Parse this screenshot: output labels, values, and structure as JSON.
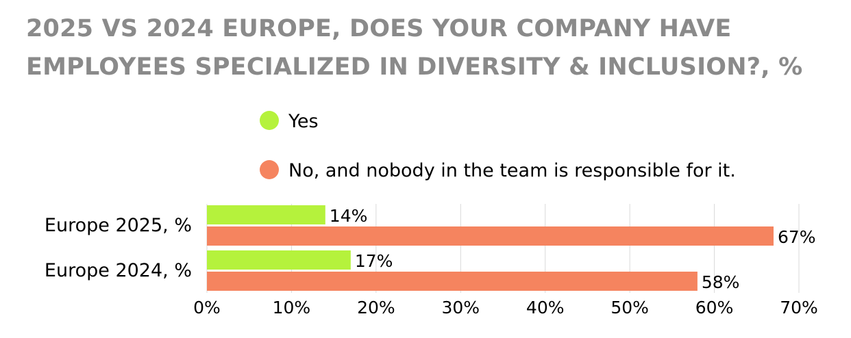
{
  "chart_data": {
    "type": "bar",
    "orientation": "horizontal",
    "title": "2025 VS 2024 EUROPE, DOES YOUR COMPANY HAVE EMPLOYEES SPECIALIZED IN DIVERSITY & INCLUSION?, %",
    "categories": [
      "Europe 2025, %",
      "Europe 2024, %"
    ],
    "series": [
      {
        "name": "Yes",
        "color": "#b5f23c",
        "values": [
          14,
          17
        ],
        "labels": [
          "14%",
          "17%"
        ]
      },
      {
        "name": "No, and nobody in the team is responsible for it.",
        "color": "#f5845f",
        "values": [
          67,
          58
        ],
        "labels": [
          "67%",
          "58%"
        ]
      }
    ],
    "xlim": [
      0,
      70
    ],
    "xticks": [
      0,
      10,
      20,
      30,
      40,
      50,
      60,
      70
    ],
    "xtick_labels": [
      "0%",
      "10%",
      "20%",
      "30%",
      "40%",
      "50%",
      "60%",
      "70%"
    ],
    "grid": true,
    "legend_position": "top"
  }
}
